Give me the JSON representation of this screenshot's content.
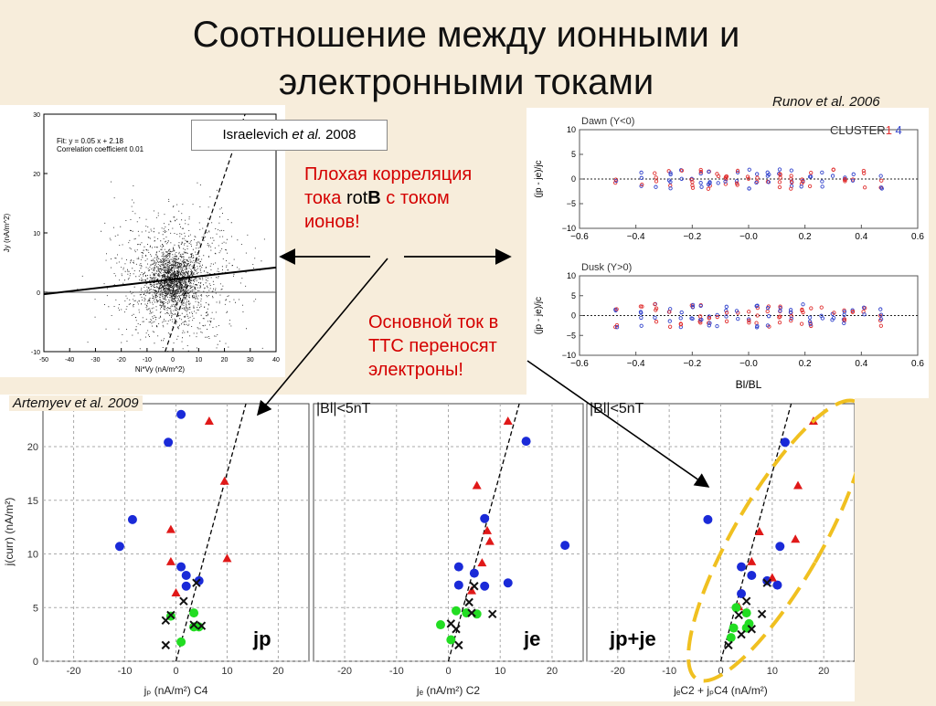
{
  "slide": {
    "title_line1": "Соотношение между ионными и",
    "title_line2": "электронными токами",
    "credits": {
      "runov": "Runov et al. 2006",
      "artemyev": "Artemyev et al. 2009"
    },
    "israelevich": {
      "name": "Israelevich",
      "etal": "et al.",
      "year": "2008"
    },
    "note1": {
      "l1": "Плохая корреляция",
      "l2a": "тока ",
      "l2b": "rot",
      "l2c": "B",
      "l2d": " с током",
      "l3": "ионов!"
    },
    "note2": {
      "l1": "Основной ток в",
      "l2": "ТТС переносят",
      "l3": "электроны!"
    }
  },
  "chart_data": [
    {
      "type": "scatter",
      "source": "Israelevich et al. 2008",
      "fit_text": "Fit: y = 0.05 x + 2.18",
      "corr_text": "Correlation coefficient 0.01",
      "xlabel": "Ni*Vy (nA/m^2)",
      "ylabel": "Jy (nA/m^2)",
      "xlim": [
        -50,
        40
      ],
      "ylim": [
        -10,
        30
      ],
      "xticks": [
        "-50",
        "-40",
        "-30",
        "-20",
        "-10",
        "0",
        "10",
        "20",
        "30",
        "40"
      ],
      "yticks": [
        "-10",
        "0",
        "10",
        "20",
        "30"
      ],
      "fit": {
        "slope": 0.05,
        "intercept": 2.18
      },
      "center": [
        0,
        2
      ]
    },
    {
      "type": "scatter",
      "source": "Runov et al. 2006",
      "logo": {
        "a": "CLUSTER",
        "b": "1",
        "c": "4"
      },
      "panels": [
        {
          "label": "Dawn  (Y<0)",
          "ylabel": "(jp - je)/jc"
        },
        {
          "label": "Dusk  (Y>0)",
          "ylabel": "(jp - je)/jc"
        }
      ],
      "xlabel": "Bl/BL",
      "xlim": [
        -0.6,
        0.6
      ],
      "ylim": [
        -10,
        10
      ],
      "xticks": [
        "−0.6",
        "−0.4",
        "−0.2",
        "−0.0",
        "0.2",
        "0.4",
        "0.6"
      ],
      "yticks": [
        "10",
        "5",
        "0",
        "−5",
        "−10"
      ],
      "x_columns": [
        -0.47,
        -0.38,
        -0.33,
        -0.28,
        -0.24,
        -0.2,
        -0.17,
        -0.14,
        -0.11,
        -0.08,
        -0.04,
        0.0,
        0.03,
        0.07,
        0.11,
        0.15,
        0.19,
        0.22,
        0.26,
        0.3,
        0.34,
        0.37,
        0.41,
        0.47
      ],
      "colors": {
        "red": "#e03030",
        "blue": "#3344cc"
      }
    },
    {
      "type": "scatter",
      "source": "Artemyev et al. 2009",
      "yticks": [
        "0",
        "5",
        "10",
        "15",
        "20"
      ],
      "xticks": [
        "-20",
        "-10",
        "0",
        "10",
        "20"
      ],
      "ylim": [
        0,
        24
      ],
      "ylabel_main": "j",
      "ylabel_sub": "(curr)",
      "ylabel_rest": " (nA/m",
      "panels": [
        {
          "header": "",
          "big_label": "jp",
          "xlabel": "jₚ (nA/m²) C4",
          "xlim": [
            -26,
            26
          ],
          "blue": [
            [
              -11,
              10.7
            ],
            [
              -8.5,
              13.2
            ],
            [
              -1.5,
              20.4
            ],
            [
              1,
              23
            ],
            [
              1,
              8.8
            ],
            [
              2,
              8
            ],
            [
              2,
              7
            ],
            [
              4.5,
              7.5
            ]
          ],
          "red": [
            [
              -1,
              12.2
            ],
            [
              -1,
              9.2
            ],
            [
              0,
              6.3
            ],
            [
              6.5,
              22.3
            ],
            [
              9.5,
              16.7
            ],
            [
              10,
              9.5
            ]
          ],
          "green": [
            [
              -1,
              4.2
            ],
            [
              1,
              1.8
            ],
            [
              3.5,
              4.5
            ],
            [
              3.5,
              3.2
            ],
            [
              4.5,
              3.2
            ]
          ],
          "cross": [
            [
              -2,
              1.5
            ],
            [
              -2,
              3.8
            ],
            [
              -1,
              4.3
            ],
            [
              1.5,
              5.6
            ],
            [
              4,
              7.3
            ],
            [
              5,
              3.3
            ],
            [
              3.5,
              3.4
            ]
          ]
        },
        {
          "header": "|Bl|<5nT",
          "big_label": "je",
          "xlabel": "jₑ (nA/m²) C2",
          "xlim": [
            -26,
            26
          ],
          "blue": [
            [
              15,
              20.5
            ],
            [
              22.5,
              10.8
            ],
            [
              7,
              13.3
            ],
            [
              2,
              8.8
            ],
            [
              2,
              7.1
            ],
            [
              5,
              8.2
            ],
            [
              7,
              7
            ],
            [
              11.5,
              7.3
            ]
          ],
          "red": [
            [
              11.5,
              22.3
            ],
            [
              5.5,
              16.3
            ],
            [
              7.5,
              12.1
            ],
            [
              8,
              11.1
            ],
            [
              6.5,
              9.1
            ],
            [
              4.5,
              6.5
            ]
          ],
          "green": [
            [
              -1.5,
              3.4
            ],
            [
              1.5,
              4.7
            ],
            [
              0.5,
              2
            ],
            [
              3.5,
              4.5
            ],
            [
              5.5,
              4.4
            ]
          ],
          "cross": [
            [
              0.5,
              3.5
            ],
            [
              1.5,
              3
            ],
            [
              2,
              1.5
            ],
            [
              4.5,
              4.5
            ],
            [
              4,
              5.5
            ],
            [
              8.5,
              4.4
            ],
            [
              5,
              7
            ]
          ]
        },
        {
          "header": "|Bl|<5nT",
          "big_label": "jp+je",
          "xlabel": "jₑC2 + jₚC4 (nA/m²)",
          "xlim": [
            -26,
            26
          ],
          "blue": [
            [
              -2.5,
              13.2
            ],
            [
              12.5,
              20.4
            ],
            [
              11.5,
              10.7
            ],
            [
              4,
              8.8
            ],
            [
              6,
              8
            ],
            [
              9,
              7.5
            ],
            [
              11,
              7.1
            ],
            [
              4,
              6.3
            ]
          ],
          "red": [
            [
              18,
              22.3
            ],
            [
              15,
              16.3
            ],
            [
              7.5,
              12
            ],
            [
              6,
              9.2
            ],
            [
              14.5,
              11.3
            ],
            [
              10,
              7.7
            ],
            [
              3.5,
              5
            ]
          ],
          "green": [
            [
              2,
              2.2
            ],
            [
              2.5,
              3.1
            ],
            [
              5,
              4.5
            ],
            [
              5.5,
              3.5
            ],
            [
              5,
              3.1
            ],
            [
              3,
              5
            ]
          ],
          "cross": [
            [
              1.5,
              1.5
            ],
            [
              3.5,
              4.3
            ],
            [
              4,
              2.5
            ],
            [
              5,
              5.6
            ],
            [
              6,
              3
            ],
            [
              8,
              4.4
            ],
            [
              9,
              7.3
            ]
          ]
        }
      ],
      "colors": {
        "blue": "#1a2ad8",
        "red": "#e01818",
        "green": "#22dd22",
        "cross": "#111"
      }
    }
  ]
}
